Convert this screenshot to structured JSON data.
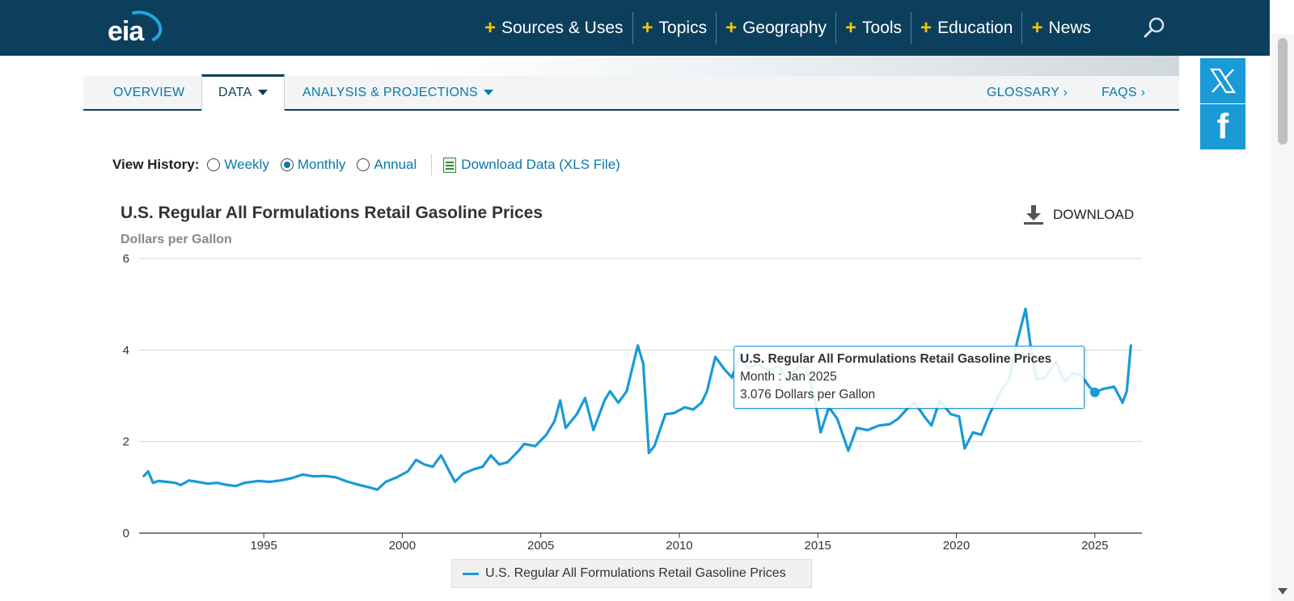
{
  "header": {
    "logo_text": "eia",
    "nav": [
      "Sources & Uses",
      "Topics",
      "Geography",
      "Tools",
      "Education",
      "News"
    ],
    "search_icon": "search-icon"
  },
  "subtabs": {
    "overview": "OVERVIEW",
    "data": "DATA",
    "analysis": "ANALYSIS & PROJECTIONS",
    "glossary": "GLOSSARY ›",
    "faqs": "FAQS ›"
  },
  "social": {
    "twitter": "x-icon",
    "facebook": "f"
  },
  "history": {
    "label": "View History:",
    "options": [
      "Weekly",
      "Monthly",
      "Annual"
    ],
    "selected": "Monthly",
    "download_xls": "Download Data (XLS File)"
  },
  "chart_download": "DOWNLOAD",
  "tooltip": {
    "title": "U.S. Regular All Formulations Retail Gasoline Prices",
    "line1": "Month : Jan 2025",
    "line2": "3.076 Dollars per Gallon"
  },
  "colors": {
    "series": "#1a9ad6",
    "nav_bg": "#0c3f5c",
    "accent": "#f6c600"
  },
  "chart_data": {
    "type": "line",
    "title": "U.S. Regular All Formulations Retail Gasoline Prices",
    "subtitle": "Dollars per Gallon",
    "xlabel": "",
    "ylabel": "",
    "ylim": [
      0,
      6
    ],
    "yticks": [
      0,
      2,
      4,
      6
    ],
    "xlim": [
      1990.5,
      2026.7
    ],
    "xticks": [
      1995,
      2000,
      2005,
      2010,
      2015,
      2020,
      2025
    ],
    "grid": true,
    "legend": "bottom-center",
    "series": [
      {
        "name": "U.S. Regular All Formulations Retail Gasoline Prices",
        "x": [
          1990.67,
          1990.83,
          1991.0,
          1991.2,
          1991.5,
          1991.8,
          1992.0,
          1992.3,
          1992.6,
          1993.0,
          1993.3,
          1993.7,
          1994.0,
          1994.3,
          1994.8,
          1995.2,
          1995.6,
          1996.0,
          1996.4,
          1996.8,
          1997.2,
          1997.6,
          1998.0,
          1998.4,
          1998.8,
          1999.1,
          1999.4,
          1999.8,
          2000.2,
          2000.5,
          2000.8,
          2001.1,
          2001.4,
          2001.7,
          2001.9,
          2002.2,
          2002.6,
          2002.9,
          2003.2,
          2003.5,
          2003.8,
          2004.2,
          2004.4,
          2004.8,
          2005.2,
          2005.5,
          2005.7,
          2005.9,
          2006.3,
          2006.6,
          2006.9,
          2007.3,
          2007.5,
          2007.8,
          2008.1,
          2008.5,
          2008.7,
          2008.9,
          2009.1,
          2009.5,
          2009.8,
          2010.2,
          2010.5,
          2010.8,
          2011.0,
          2011.3,
          2011.6,
          2011.9,
          2012.2,
          2012.5,
          2012.8,
          2013.2,
          2013.6,
          2013.9,
          2014.3,
          2014.6,
          2014.9,
          2015.1,
          2015.4,
          2015.7,
          2016.1,
          2016.4,
          2016.8,
          2017.2,
          2017.6,
          2017.9,
          2018.2,
          2018.5,
          2018.9,
          2019.1,
          2019.4,
          2019.8,
          2020.1,
          2020.3,
          2020.6,
          2020.9,
          2021.2,
          2021.6,
          2021.9,
          2022.2,
          2022.5,
          2022.7,
          2022.9,
          2023.2,
          2023.6,
          2023.9,
          2024.2,
          2024.5,
          2024.8,
          2025.0,
          2025.3,
          2025.7,
          2026.0,
          2026.15,
          2026.3
        ],
        "values": [
          1.25,
          1.35,
          1.1,
          1.14,
          1.12,
          1.1,
          1.05,
          1.15,
          1.12,
          1.08,
          1.1,
          1.05,
          1.03,
          1.1,
          1.14,
          1.12,
          1.15,
          1.2,
          1.28,
          1.24,
          1.25,
          1.22,
          1.13,
          1.06,
          1.0,
          0.95,
          1.12,
          1.22,
          1.35,
          1.6,
          1.5,
          1.45,
          1.7,
          1.35,
          1.12,
          1.3,
          1.4,
          1.45,
          1.7,
          1.5,
          1.55,
          1.8,
          1.95,
          1.9,
          2.15,
          2.45,
          2.9,
          2.3,
          2.6,
          2.95,
          2.25,
          2.9,
          3.1,
          2.85,
          3.1,
          4.1,
          3.7,
          1.75,
          1.9,
          2.6,
          2.62,
          2.75,
          2.7,
          2.85,
          3.1,
          3.85,
          3.6,
          3.4,
          3.9,
          3.6,
          3.7,
          3.55,
          3.65,
          3.35,
          3.65,
          3.6,
          2.9,
          2.2,
          2.75,
          2.5,
          1.8,
          2.3,
          2.25,
          2.35,
          2.38,
          2.5,
          2.7,
          2.85,
          2.5,
          2.35,
          2.9,
          2.6,
          2.55,
          1.85,
          2.2,
          2.15,
          2.6,
          3.1,
          3.35,
          4.2,
          4.9,
          4.0,
          3.35,
          3.4,
          3.75,
          3.3,
          3.5,
          3.45,
          3.2,
          3.076,
          3.15,
          3.2,
          2.85,
          3.1,
          4.1
        ]
      }
    ],
    "highlight": {
      "x": 2025.0,
      "y": 3.076
    }
  }
}
